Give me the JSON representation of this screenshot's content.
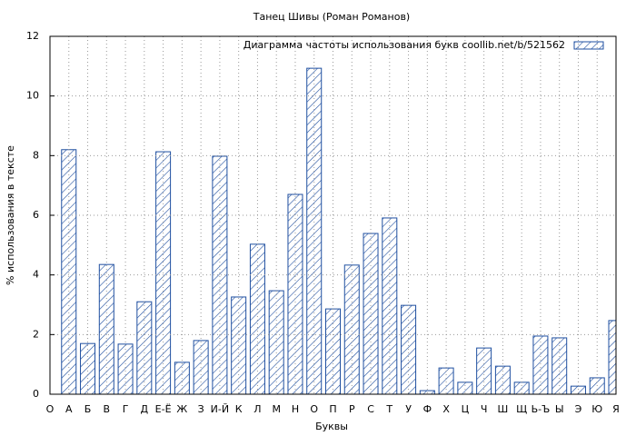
{
  "chart_data": {
    "type": "bar",
    "title": "Танец Шивы (Роман Романов)",
    "x_label": "Буквы",
    "y_label": "% использования в тексте",
    "categories": [
      "О",
      "А",
      "Б",
      "В",
      "Г",
      "Д",
      "Е-Ё",
      "Ж",
      "З",
      "И-Й",
      "К",
      "Л",
      "М",
      "Н",
      "О",
      "П",
      "Р",
      "С",
      "Т",
      "У",
      "Ф",
      "Х",
      "Ц",
      "Ч",
      "Ш",
      "Щ",
      "Ь-Ъ",
      "Ы",
      "Э",
      "Ю",
      "Я"
    ],
    "series": [
      {
        "name": "Диаграмма частоты использования букв  coollib.net/b/521562",
        "color": "#1f4fa0",
        "values": [
          0,
          8.2,
          1.7,
          4.35,
          1.68,
          3.1,
          8.13,
          1.07,
          1.8,
          7.98,
          3.26,
          5.03,
          3.47,
          6.7,
          10.93,
          2.86,
          4.33,
          5.39,
          5.91,
          2.98,
          0.12,
          0.88,
          0.4,
          1.55,
          0.94,
          0.4,
          1.95,
          1.89,
          0.27,
          0.55,
          2.47
        ]
      }
    ],
    "ylim": [
      0,
      12
    ],
    "yticks": [
      0,
      2,
      4,
      6,
      8,
      10,
      12
    ],
    "grid": true,
    "legend": "top-right"
  }
}
